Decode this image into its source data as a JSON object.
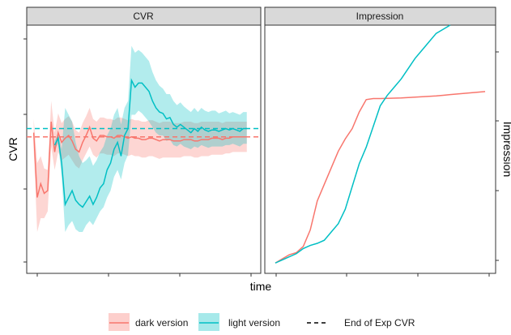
{
  "chart_data": [
    {
      "type": "line",
      "title": "CVR",
      "xlabel": "time",
      "ylabel": "CVR",
      "grid": false,
      "x": [
        1,
        2,
        3,
        4,
        5,
        6,
        7,
        8,
        9,
        10,
        11,
        12,
        13,
        14,
        15,
        16,
        17,
        18,
        19,
        20,
        21,
        22,
        23,
        24,
        25,
        26,
        27,
        28,
        29,
        30,
        31,
        32,
        33,
        34,
        35,
        36,
        37,
        38,
        39,
        40,
        41,
        42,
        43,
        44,
        45,
        46,
        47,
        48,
        49,
        50,
        51,
        52,
        53,
        54,
        55,
        56,
        57,
        58,
        59,
        60,
        61,
        62
      ],
      "series": [
        {
          "name": "dark version",
          "color": "#F8766D",
          "values": [
            0.82,
            0.35,
            0.45,
            0.38,
            0.4,
            0.9,
            0.68,
            0.82,
            0.75,
            0.78,
            0.8,
            0.76,
            0.7,
            0.68,
            0.75,
            0.8,
            0.86,
            0.78,
            0.76,
            0.8,
            0.8,
            0.79,
            0.79,
            0.78,
            0.8,
            0.8,
            0.79,
            0.78,
            0.79,
            0.78,
            0.78,
            0.77,
            0.77,
            0.78,
            0.78,
            0.77,
            0.76,
            0.77,
            0.77,
            0.77,
            0.76,
            0.76,
            0.76,
            0.77,
            0.77,
            0.77,
            0.76,
            0.76,
            0.77,
            0.77,
            0.77,
            0.78,
            0.78,
            0.78,
            0.77,
            0.78,
            0.78,
            0.79,
            0.79,
            0.79,
            0.79,
            0.79
          ],
          "lower": [
            0.7,
            0.1,
            0.2,
            0.2,
            0.25,
            0.72,
            0.55,
            0.68,
            0.62,
            0.64,
            0.66,
            0.62,
            0.58,
            0.56,
            0.62,
            0.67,
            0.72,
            0.66,
            0.64,
            0.67,
            0.67,
            0.66,
            0.66,
            0.65,
            0.67,
            0.67,
            0.66,
            0.65,
            0.66,
            0.65,
            0.65,
            0.64,
            0.64,
            0.65,
            0.65,
            0.64,
            0.63,
            0.64,
            0.64,
            0.64,
            0.64,
            0.64,
            0.64,
            0.65,
            0.65,
            0.65,
            0.64,
            0.64,
            0.65,
            0.65,
            0.65,
            0.66,
            0.66,
            0.66,
            0.66,
            0.67,
            0.67,
            0.68,
            0.68,
            0.68,
            0.68,
            0.68
          ],
          "upper": [
            0.92,
            0.6,
            0.65,
            0.56,
            0.55,
            1.05,
            0.82,
            0.96,
            0.89,
            0.92,
            0.94,
            0.9,
            0.84,
            0.82,
            0.89,
            0.94,
            1.0,
            0.92,
            0.9,
            0.93,
            0.93,
            0.92,
            0.92,
            0.91,
            0.93,
            0.93,
            0.92,
            0.91,
            0.92,
            0.91,
            0.91,
            0.9,
            0.9,
            0.91,
            0.91,
            0.9,
            0.89,
            0.9,
            0.9,
            0.9,
            0.89,
            0.89,
            0.89,
            0.9,
            0.9,
            0.9,
            0.89,
            0.89,
            0.9,
            0.9,
            0.9,
            0.9,
            0.9,
            0.9,
            0.89,
            0.9,
            0.9,
            0.9,
            0.9,
            0.9,
            0.9,
            0.9
          ],
          "end_of_exp": 0.79
        },
        {
          "name": "light version",
          "color": "#00BFC4",
          "values": [
            null,
            null,
            null,
            null,
            null,
            null,
            0.73,
            0.78,
            0.6,
            0.3,
            0.35,
            0.4,
            0.33,
            0.3,
            0.28,
            0.32,
            0.36,
            0.3,
            0.35,
            0.42,
            0.45,
            0.55,
            0.6,
            0.7,
            0.75,
            0.65,
            0.8,
            0.85,
            1.2,
            1.15,
            1.18,
            1.18,
            1.15,
            1.12,
            1.05,
            1.0,
            0.97,
            0.96,
            0.92,
            0.93,
            0.88,
            0.86,
            0.88,
            0.86,
            0.84,
            0.82,
            0.85,
            0.83,
            0.86,
            0.84,
            0.83,
            0.84,
            0.84,
            0.83,
            0.84,
            0.85,
            0.84,
            0.85,
            0.84,
            0.83,
            0.85,
            0.85
          ],
          "lower": [
            null,
            null,
            null,
            null,
            null,
            null,
            0.7,
            0.74,
            0.5,
            0.1,
            0.15,
            0.18,
            0.12,
            0.1,
            0.1,
            0.15,
            0.18,
            0.15,
            0.2,
            0.25,
            0.28,
            0.35,
            0.4,
            0.5,
            0.55,
            0.48,
            0.6,
            0.66,
            0.95,
            0.95,
            0.98,
            0.96,
            0.93,
            0.9,
            0.86,
            0.82,
            0.8,
            0.8,
            0.76,
            0.77,
            0.73,
            0.72,
            0.74,
            0.72,
            0.71,
            0.7,
            0.72,
            0.71,
            0.73,
            0.72,
            0.71,
            0.72,
            0.72,
            0.72,
            0.72,
            0.73,
            0.73,
            0.74,
            0.73,
            0.72,
            0.74,
            0.74
          ],
          "upper": [
            null,
            null,
            null,
            null,
            null,
            null,
            0.76,
            0.82,
            0.7,
            1.0,
            0.95,
            0.9,
            0.75,
            0.65,
            0.6,
            0.62,
            0.65,
            0.58,
            0.62,
            0.68,
            0.72,
            0.8,
            0.85,
            0.95,
            1.0,
            0.88,
            1.0,
            1.05,
            1.45,
            1.4,
            1.42,
            1.4,
            1.37,
            1.34,
            1.26,
            1.2,
            1.16,
            1.14,
            1.1,
            1.1,
            1.05,
            1.02,
            1.04,
            1.01,
            0.99,
            0.97,
            1.0,
            0.97,
            1.0,
            0.98,
            0.97,
            0.98,
            0.98,
            0.96,
            0.97,
            0.98,
            0.96,
            0.97,
            0.96,
            0.95,
            0.97,
            0.97
          ],
          "end_of_exp": 0.85
        }
      ],
      "ylim": [
        -0.2,
        1.6
      ],
      "xlim": [
        -1,
        66
      ]
    },
    {
      "type": "line",
      "title": "Impression",
      "xlabel": "time",
      "ylabel": "Impression",
      "grid": false,
      "x": [
        0,
        1,
        2,
        3,
        4,
        5,
        6,
        7,
        8,
        9,
        10,
        11,
        12,
        13,
        14,
        15,
        16,
        17,
        18,
        19,
        20,
        21,
        22,
        23,
        24,
        25,
        26,
        27,
        28,
        29,
        30
      ],
      "series": [
        {
          "name": "dark version",
          "color": "#F8766D",
          "values": [
            0,
            2,
            4,
            5,
            8,
            16,
            30,
            38,
            46,
            54,
            60,
            65,
            73,
            79,
            79.5,
            79.5,
            79.6,
            79.7,
            79.8,
            80,
            80.2,
            80.4,
            80.6,
            80.8,
            81.1,
            81.4,
            81.7,
            82,
            82.3,
            82.6,
            82.9
          ]
        },
        {
          "name": "light version",
          "color": "#00BFC4",
          "values": [
            0,
            1.5,
            3,
            4.5,
            7,
            8.5,
            9.5,
            11,
            15,
            19,
            26,
            37,
            48,
            56,
            66,
            76,
            81,
            85,
            89,
            94,
            99,
            103,
            107,
            111,
            113,
            115,
            null,
            null,
            null,
            null,
            null
          ]
        }
      ],
      "ylim": [
        -5,
        115
      ]
    }
  ],
  "panels": {
    "left_strip": "CVR",
    "right_strip": "Impression"
  },
  "axes": {
    "xlabel": "time",
    "ylabel_left": "CVR",
    "ylabel_right": "Impression"
  },
  "legend": {
    "position": "bottom",
    "items": [
      {
        "label": "dark version",
        "color": "#F8766D",
        "fill": "#F8766D"
      },
      {
        "label": "light version",
        "color": "#00BFC4",
        "fill": "#00BFC4"
      },
      {
        "label": "End of Exp CVR",
        "color": "#000000",
        "dashed": true
      }
    ]
  },
  "colors": {
    "strip_bg": "#D9D9D9",
    "panel_border": "#333333",
    "dark": "#F8766D",
    "light": "#00BFC4"
  }
}
